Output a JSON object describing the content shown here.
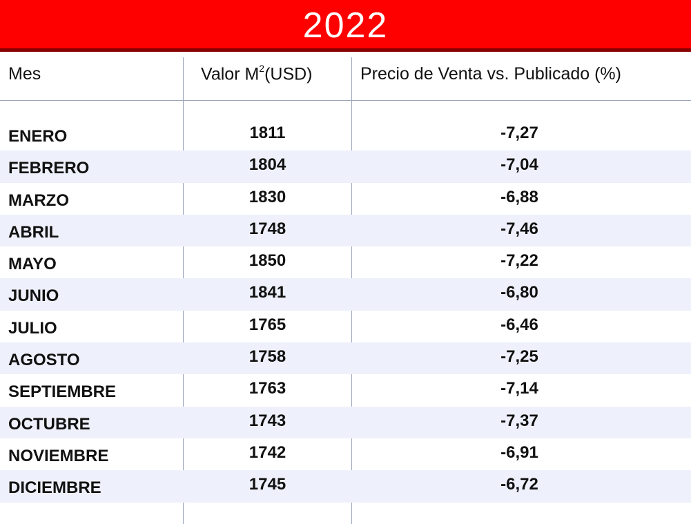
{
  "banner": {
    "title": "2022",
    "background_color": "#ff0000",
    "border_color": "#8a0000"
  },
  "table": {
    "headers": {
      "mes": "Mes",
      "valor_prefix": "Valor M",
      "valor_sup": "2",
      "valor_suffix": "(USD)",
      "precio": "Precio de Venta vs. Publicado (%)"
    },
    "rows": [
      {
        "mes": "ENERO",
        "valor": "1811",
        "precio": "-7,27"
      },
      {
        "mes": "FEBRERO",
        "valor": "1804",
        "precio": "-7,04"
      },
      {
        "mes": "MARZO",
        "valor": "1830",
        "precio": "-6,88"
      },
      {
        "mes": "ABRIL",
        "valor": "1748",
        "precio": "-7,46"
      },
      {
        "mes": "MAYO",
        "valor": "1850",
        "precio": "-7,22"
      },
      {
        "mes": "JUNIO",
        "valor": "1841",
        "precio": "-6,80"
      },
      {
        "mes": "JULIO",
        "valor": "1765",
        "precio": "-6,46"
      },
      {
        "mes": "AGOSTO",
        "valor": "1758",
        "precio": "-7,25"
      },
      {
        "mes": "SEPTIEMBRE",
        "valor": "1763",
        "precio": "-7,14"
      },
      {
        "mes": "OCTUBRE",
        "valor": "1743",
        "precio": "-7,37"
      },
      {
        "mes": "NOVIEMBRE",
        "valor": "1742",
        "precio": "-6,91"
      },
      {
        "mes": "DICIEMBRE",
        "valor": "1745",
        "precio": "-6,72"
      }
    ],
    "alt_row_color": "#eef1fb",
    "divider_color": "#9aa7b8"
  }
}
